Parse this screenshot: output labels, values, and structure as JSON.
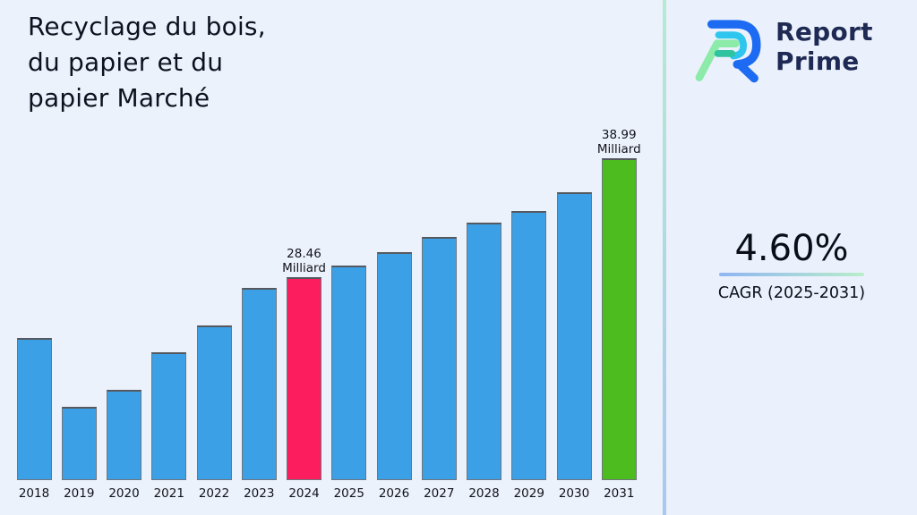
{
  "page": {
    "background": "#ECF2FC"
  },
  "header": {
    "title_lines": [
      "Recyclage du bois,",
      "du papier et du",
      "papier Marché"
    ]
  },
  "logo": {
    "word1": "Report",
    "word2": "Prime",
    "brand_color": "#1F2A54"
  },
  "cagr": {
    "value": "4.60%",
    "label": "CAGR (2025-2031)",
    "underline_colors": [
      "#8FB5F2",
      "#BAEDCB"
    ]
  },
  "divider_colors": [
    "#B5EBD2",
    "#A9C7F0"
  ],
  "chart_data": {
    "type": "bar",
    "title": "Recyclage du bois, du papier et du papier Marché",
    "categories": [
      "2018",
      "2019",
      "2020",
      "2021",
      "2022",
      "2023",
      "2024",
      "2025",
      "2026",
      "2027",
      "2028",
      "2029",
      "2030",
      "2031"
    ],
    "values": [
      23.1,
      17.0,
      18.5,
      21.8,
      24.2,
      27.5,
      28.46,
      29.5,
      30.7,
      32.0,
      33.3,
      34.3,
      36.0,
      38.99
    ],
    "unit": "Milliard",
    "bar_color": "#3CA0E6",
    "highlights": [
      {
        "category": "2024",
        "color": "#FB1D5D"
      },
      {
        "category": "2031",
        "color": "#4DBC1E"
      }
    ],
    "annotations": [
      {
        "category": "2024",
        "value_label": "28.46",
        "unit_label": "Milliard"
      },
      {
        "category": "2031",
        "value_label": "38.99",
        "unit_label": "Milliard"
      }
    ],
    "ylim": [
      10.5,
      40
    ],
    "xlabel": "",
    "ylabel": "",
    "grid": false,
    "legend": false
  }
}
